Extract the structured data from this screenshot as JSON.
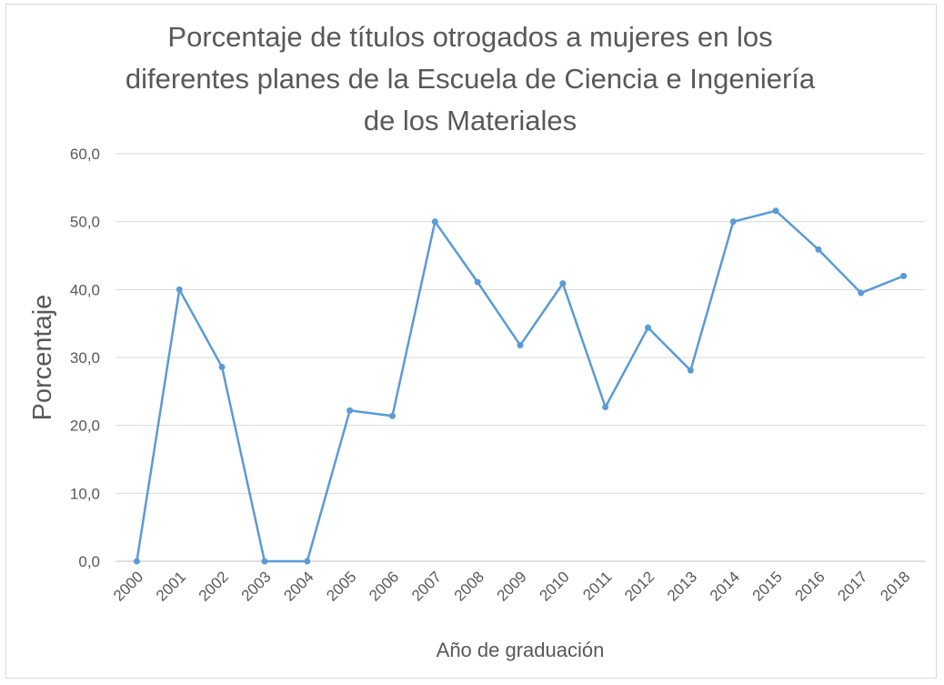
{
  "chart_data": {
    "type": "line",
    "title_lines": [
      "Porcentaje de títulos otrogados a mujeres en los",
      "diferentes planes de la Escuela de Ciencia e Ingeniería",
      "de los Materiales"
    ],
    "xlabel": "Año de graduación",
    "ylabel": "Porcentaje",
    "ylim": [
      0,
      60
    ],
    "yticks": [
      "0,0",
      "10,0",
      "20,0",
      "30,0",
      "40,0",
      "50,0",
      "60,0"
    ],
    "grid": true,
    "line_color": "#5b9bd5",
    "categories": [
      "2000",
      "2001",
      "2002",
      "2003",
      "2004",
      "2005",
      "2006",
      "2007",
      "2008",
      "2009",
      "2010",
      "2011",
      "2012",
      "2013",
      "2014",
      "2015",
      "2016",
      "2017",
      "2018"
    ],
    "values": [
      0,
      40.0,
      28.6,
      0,
      0,
      22.2,
      21.4,
      50.0,
      41.1,
      31.8,
      40.9,
      22.7,
      34.4,
      28.1,
      50.0,
      51.6,
      45.9,
      39.5,
      42.0
    ]
  }
}
